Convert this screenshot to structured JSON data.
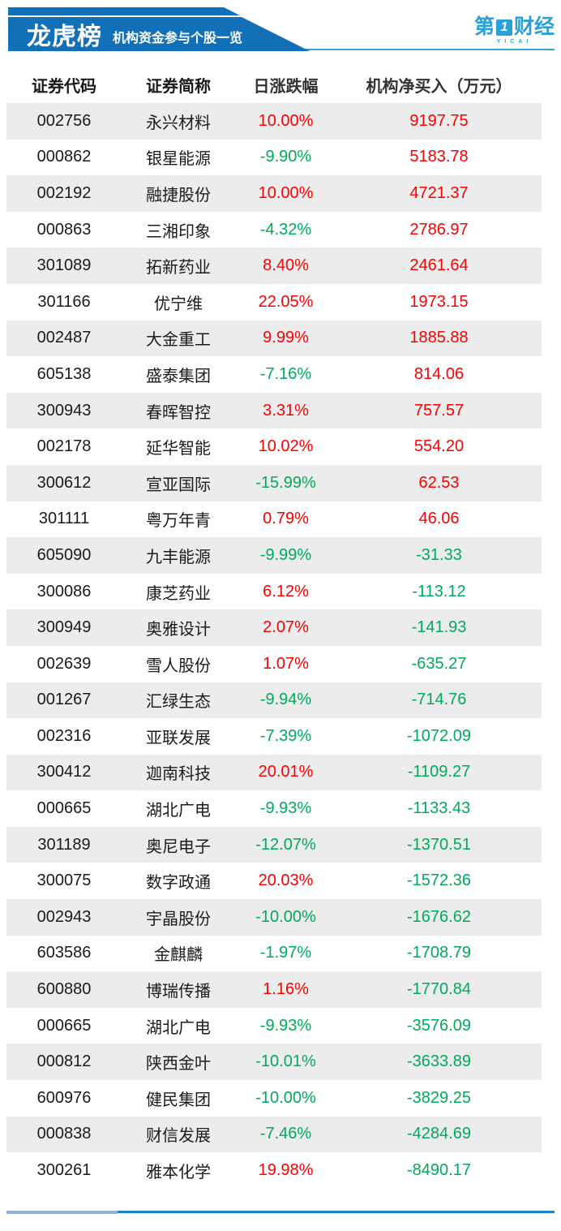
{
  "header": {
    "title": "龙虎榜",
    "subtitle": "机构资金参与个股一览",
    "logo": {
      "part1": "第",
      "part2": "1",
      "part3": "财经",
      "sub": "YICAI"
    }
  },
  "colors": {
    "up": "#fd0000",
    "down": "#00aa5b",
    "banner_blue": "#1170b8",
    "logo_blue": "#2b9fd8",
    "stripe_gray": "#ececec"
  },
  "chart_data": {
    "type": "table",
    "title": "龙虎榜 机构资金参与个股一览",
    "columns": [
      "证券代码",
      "证券简称",
      "日涨跌幅",
      "机构净买入（万元）"
    ],
    "rows": [
      {
        "code": "002756",
        "name": "永兴材料",
        "change": "10.00%",
        "change_dir": "up",
        "net_buy": "9197.75",
        "net_buy_dir": "up"
      },
      {
        "code": "000862",
        "name": "银星能源",
        "change": "-9.90%",
        "change_dir": "down",
        "net_buy": "5183.78",
        "net_buy_dir": "up"
      },
      {
        "code": "002192",
        "name": "融捷股份",
        "change": "10.00%",
        "change_dir": "up",
        "net_buy": "4721.37",
        "net_buy_dir": "up"
      },
      {
        "code": "000863",
        "name": "三湘印象",
        "change": "-4.32%",
        "change_dir": "down",
        "net_buy": "2786.97",
        "net_buy_dir": "up"
      },
      {
        "code": "301089",
        "name": "拓新药业",
        "change": "8.40%",
        "change_dir": "up",
        "net_buy": "2461.64",
        "net_buy_dir": "up"
      },
      {
        "code": "301166",
        "name": "优宁维",
        "change": "22.05%",
        "change_dir": "up",
        "net_buy": "1973.15",
        "net_buy_dir": "up"
      },
      {
        "code": "002487",
        "name": "大金重工",
        "change": "9.99%",
        "change_dir": "up",
        "net_buy": "1885.88",
        "net_buy_dir": "up"
      },
      {
        "code": "605138",
        "name": "盛泰集团",
        "change": "-7.16%",
        "change_dir": "down",
        "net_buy": "814.06",
        "net_buy_dir": "up"
      },
      {
        "code": "300943",
        "name": "春晖智控",
        "change": "3.31%",
        "change_dir": "up",
        "net_buy": "757.57",
        "net_buy_dir": "up"
      },
      {
        "code": "002178",
        "name": "延华智能",
        "change": "10.02%",
        "change_dir": "up",
        "net_buy": "554.20",
        "net_buy_dir": "up"
      },
      {
        "code": "300612",
        "name": "宣亚国际",
        "change": "-15.99%",
        "change_dir": "down",
        "net_buy": "62.53",
        "net_buy_dir": "up"
      },
      {
        "code": "301111",
        "name": "粤万年青",
        "change": "0.79%",
        "change_dir": "up",
        "net_buy": "46.06",
        "net_buy_dir": "up"
      },
      {
        "code": "605090",
        "name": "九丰能源",
        "change": "-9.99%",
        "change_dir": "down",
        "net_buy": "-31.33",
        "net_buy_dir": "down"
      },
      {
        "code": "300086",
        "name": "康芝药业",
        "change": "6.12%",
        "change_dir": "up",
        "net_buy": "-113.12",
        "net_buy_dir": "down"
      },
      {
        "code": "300949",
        "name": "奥雅设计",
        "change": "2.07%",
        "change_dir": "up",
        "net_buy": "-141.93",
        "net_buy_dir": "down"
      },
      {
        "code": "002639",
        "name": "雪人股份",
        "change": "1.07%",
        "change_dir": "up",
        "net_buy": "-635.27",
        "net_buy_dir": "down"
      },
      {
        "code": "001267",
        "name": "汇绿生态",
        "change": "-9.94%",
        "change_dir": "down",
        "net_buy": "-714.76",
        "net_buy_dir": "down"
      },
      {
        "code": "002316",
        "name": "亚联发展",
        "change": "-7.39%",
        "change_dir": "down",
        "net_buy": "-1072.09",
        "net_buy_dir": "down"
      },
      {
        "code": "300412",
        "name": "迦南科技",
        "change": "20.01%",
        "change_dir": "up",
        "net_buy": "-1109.27",
        "net_buy_dir": "down"
      },
      {
        "code": "000665",
        "name": "湖北广电",
        "change": "-9.93%",
        "change_dir": "down",
        "net_buy": "-1133.43",
        "net_buy_dir": "down"
      },
      {
        "code": "301189",
        "name": "奥尼电子",
        "change": "-12.07%",
        "change_dir": "down",
        "net_buy": "-1370.51",
        "net_buy_dir": "down"
      },
      {
        "code": "300075",
        "name": "数字政通",
        "change": "20.03%",
        "change_dir": "up",
        "net_buy": "-1572.36",
        "net_buy_dir": "down"
      },
      {
        "code": "002943",
        "name": "宇晶股份",
        "change": "-10.00%",
        "change_dir": "down",
        "net_buy": "-1676.62",
        "net_buy_dir": "down"
      },
      {
        "code": "603586",
        "name": "金麒麟",
        "change": "-1.97%",
        "change_dir": "down",
        "net_buy": "-1708.79",
        "net_buy_dir": "down"
      },
      {
        "code": "600880",
        "name": "博瑞传播",
        "change": "1.16%",
        "change_dir": "up",
        "net_buy": "-1770.84",
        "net_buy_dir": "down"
      },
      {
        "code": "000665",
        "name": "湖北广电",
        "change": "-9.93%",
        "change_dir": "down",
        "net_buy": "-3576.09",
        "net_buy_dir": "down"
      },
      {
        "code": "000812",
        "name": "陕西金叶",
        "change": "-10.01%",
        "change_dir": "down",
        "net_buy": "-3633.89",
        "net_buy_dir": "down"
      },
      {
        "code": "600976",
        "name": "健民集团",
        "change": "-10.00%",
        "change_dir": "down",
        "net_buy": "-3829.25",
        "net_buy_dir": "down"
      },
      {
        "code": "000838",
        "name": "财信发展",
        "change": "-7.46%",
        "change_dir": "down",
        "net_buy": "-4284.69",
        "net_buy_dir": "down"
      },
      {
        "code": "300261",
        "name": "雅本化学",
        "change": "19.98%",
        "change_dir": "up",
        "net_buy": "-8490.17",
        "net_buy_dir": "down"
      }
    ]
  }
}
